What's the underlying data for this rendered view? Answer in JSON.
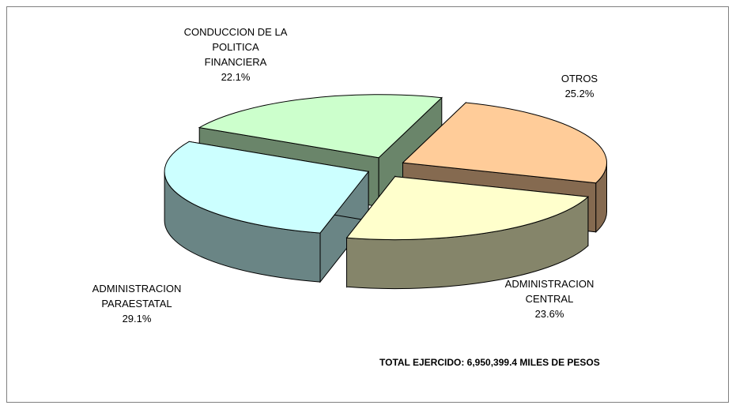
{
  "chart_data": {
    "type": "pie",
    "annotation": "TOTAL EJERCIDO: 6,950,399.4 MILES DE PESOS",
    "categories": [
      "OTROS",
      "ADMINISTRACION CENTRAL",
      "ADMINISTRACION PARAESTATAL",
      "CONDUCCION DE LA POLITICA FINANCIERA"
    ],
    "values": [
      25.2,
      23.6,
      29.1,
      22.1
    ],
    "value_labels": [
      "25.2%",
      "23.6%",
      "29.1%",
      "22.1%"
    ],
    "colors": [
      "#ffcc99",
      "#ffffcc",
      "#ccffff",
      "#ccffcc"
    ]
  }
}
